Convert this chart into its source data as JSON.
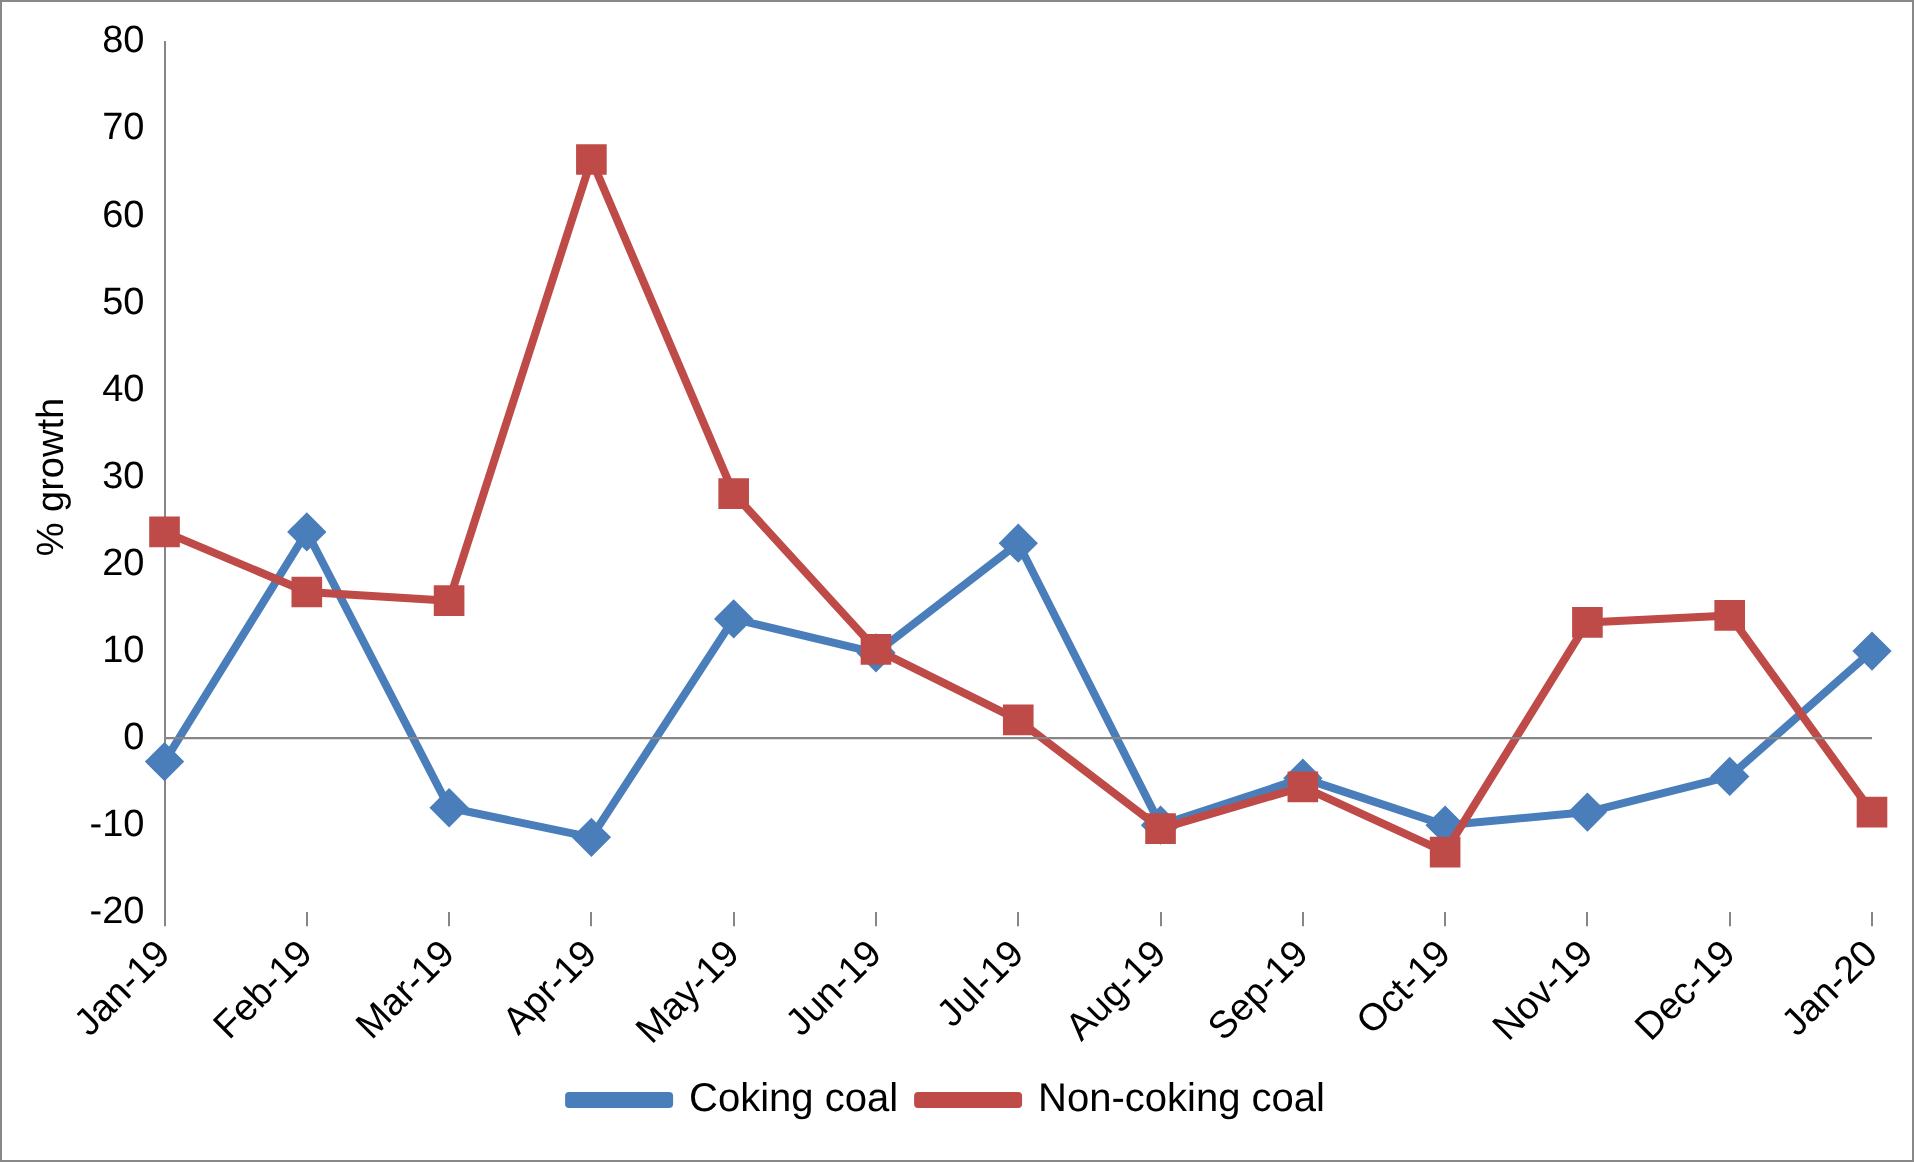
{
  "chart_data": {
    "type": "line",
    "ylabel": "% growth",
    "categories": [
      "Jan-19",
      "Feb-19",
      "Mar-19",
      "Apr-19",
      "May-19",
      "Jun-19",
      "Jul-19",
      "Aug-19",
      "Sep-19",
      "Oct-19",
      "Nov-19",
      "Dec-19",
      "Jan-20"
    ],
    "series": [
      {
        "name": "Coking coal",
        "color": "#4a7ebb",
        "marker": "diamond",
        "values": [
          -2.7,
          23.7,
          -8,
          -11.4,
          13.7,
          9.8,
          22.4,
          -10,
          -4.6,
          -10,
          -8.5,
          -4.4,
          10
        ]
      },
      {
        "name": "Non-coking coal",
        "color": "#be4b48",
        "marker": "square",
        "values": [
          23.7,
          16.8,
          15.8,
          66.5,
          28.1,
          10.2,
          2.1,
          -10.4,
          -5.6,
          -13.1,
          13.3,
          14.1,
          -8.5
        ]
      }
    ],
    "ylim": [
      -20,
      80
    ],
    "yticks": [
      -20,
      -10,
      0,
      10,
      20,
      30,
      40,
      50,
      60,
      70,
      80
    ],
    "grid": false,
    "ref_lines": [
      {
        "axis": "y",
        "value": 0,
        "color": "#868686"
      }
    ],
    "legend": "bottom",
    "line_style": "solid"
  }
}
